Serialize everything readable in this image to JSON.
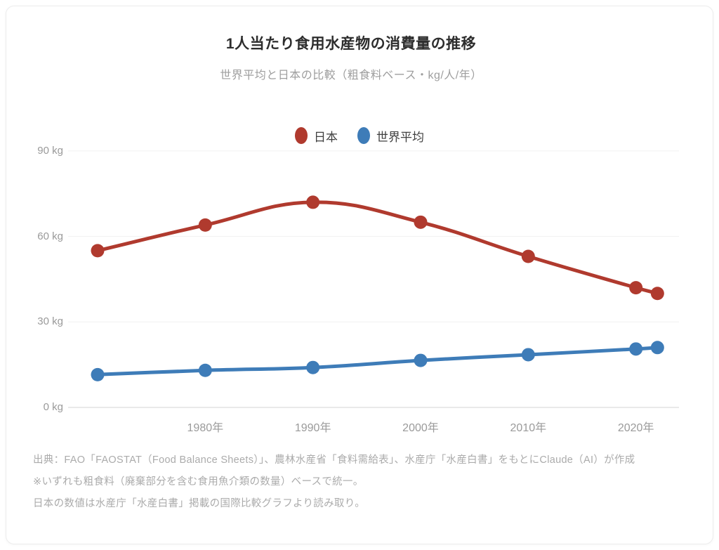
{
  "chart_data": {
    "type": "line",
    "title": "1人当たり食用水産物の消費量の推移",
    "subtitle": "世界平均と日本の比較（粗食料ベース・kg/人/年）",
    "unit": "kg/人/年",
    "x": [
      1970,
      1980,
      1990,
      2000,
      2010,
      2020,
      2022
    ],
    "x_ticks": [
      {
        "value": 1980,
        "label": "1980年"
      },
      {
        "value": 1990,
        "label": "1990年"
      },
      {
        "value": 2000,
        "label": "2000年"
      },
      {
        "value": 2010,
        "label": "2010年"
      },
      {
        "value": 2020,
        "label": "2020年"
      }
    ],
    "y_ticks": [
      {
        "value": 90,
        "label": "90 kg"
      },
      {
        "value": 60,
        "label": "60 kg"
      },
      {
        "value": 30,
        "label": "30 kg"
      },
      {
        "value": 0,
        "label": "0 kg"
      }
    ],
    "ylim": [
      0,
      90
    ],
    "xlim": [
      1970,
      2022
    ],
    "series": [
      {
        "key": "japan",
        "name": "日本",
        "color": "#b03a2e",
        "values": [
          55,
          64,
          72,
          65,
          53,
          42,
          40
        ]
      },
      {
        "key": "world",
        "name": "世界平均",
        "color": "#3e7cb8",
        "values": [
          11.5,
          13,
          14,
          16.5,
          18.5,
          20.5,
          21
        ]
      }
    ],
    "grid": "horizontal",
    "legend_position": "top",
    "line_style": "smooth",
    "point_markers": true
  },
  "footer": {
    "lines": [
      "出典：FAO「FAOSTAT（Food Balance Sheets）」、農林水産省「食料需給表」、水産庁「水産白書」をもとにClaude（AI）が作成",
      "※いずれも粗食料（廃棄部分を含む食用魚介類の数量）ベースで統一。",
      "日本の数値は水産庁「水産白書」掲載の国際比較グラフより読み取り。"
    ]
  }
}
